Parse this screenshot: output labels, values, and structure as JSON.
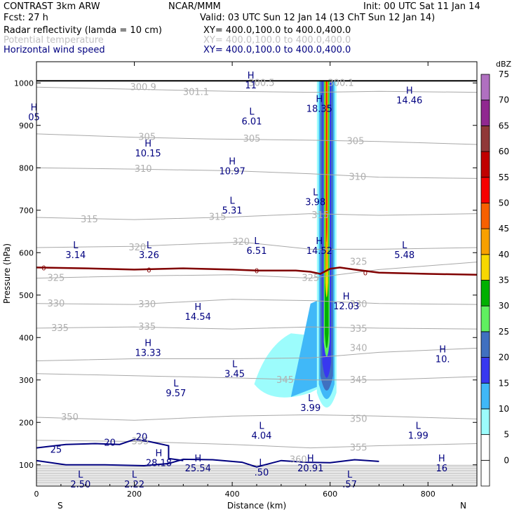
{
  "header": {
    "model": "CONTRAST  3km ARW",
    "center": "NCAR/MMM",
    "init": "Init: 00 UTC Sat 11 Jan 14",
    "fcst": "Fcst:    27 h",
    "valid": "Valid: 03 UTC Sun 12 Jan 14 (13 ChT Sun 12 Jan 14)",
    "fields": [
      {
        "name": "Radar reflectivity (lamda = 10 cm)",
        "xy": "XY=  400.0,100.0 to 400.0,400.0",
        "color": "#000000"
      },
      {
        "name": "Potential temperature",
        "xy": "XY=  400.0,100.0 to 400.0,400.0",
        "color": "#c0c0c0"
      },
      {
        "name": "Horizontal wind speed",
        "xy": "XY=  400.0,100.0 to 400.0,400.0",
        "color": "#000080"
      }
    ]
  },
  "chart_data": {
    "type": "cross-section",
    "xlabel": "Distance (km)",
    "ylabel": "Pressure (hPa)",
    "xlim": [
      0,
      900
    ],
    "ylim": [
      1050,
      50
    ],
    "x_ticks": [
      0,
      200,
      400,
      600,
      800
    ],
    "y_ticks": [
      100,
      200,
      300,
      400,
      500,
      600,
      700,
      800,
      900,
      1000
    ],
    "x_end_labels": {
      "left": "S",
      "right": "N"
    },
    "colorbar": {
      "unit": "dBZ",
      "levels": [
        0,
        5,
        10,
        15,
        20,
        25,
        30,
        35,
        40,
        45,
        50,
        55,
        60,
        65,
        70,
        75
      ],
      "colors": [
        "#ffffff",
        "#9cfcfc",
        "#40b8f8",
        "#3838f0",
        "#4070c0",
        "#60f060",
        "#00b000",
        "#f8d800",
        "#f8a000",
        "#f86000",
        "#f80000",
        "#c00000",
        "#903838",
        "#902890",
        "#b070c0"
      ]
    },
    "theta_contours": [
      {
        "value": 300,
        "points": [
          [
            0,
            990
          ],
          [
            200,
            985
          ],
          [
            400,
            980
          ],
          [
            560,
            978
          ],
          [
            700,
            980
          ],
          [
            900,
            978
          ]
        ]
      },
      {
        "value": 305,
        "points": [
          [
            0,
            880
          ],
          [
            200,
            872
          ],
          [
            350,
            868
          ],
          [
            560,
            865
          ],
          [
            700,
            862
          ],
          [
            900,
            855
          ]
        ]
      },
      {
        "value": 310,
        "points": [
          [
            0,
            800
          ],
          [
            200,
            797
          ],
          [
            400,
            793
          ],
          [
            560,
            786
          ],
          [
            700,
            778
          ],
          [
            900,
            775
          ]
        ]
      },
      {
        "value": 315,
        "points": [
          [
            0,
            683
          ],
          [
            200,
            678
          ],
          [
            400,
            684
          ],
          [
            560,
            692
          ],
          [
            700,
            688
          ],
          [
            900,
            692
          ]
        ]
      },
      {
        "value": 320,
        "points": [
          [
            0,
            612
          ],
          [
            200,
            615
          ],
          [
            420,
            625
          ],
          [
            560,
            608
          ],
          [
            700,
            608
          ],
          [
            900,
            612
          ]
        ]
      },
      {
        "value": 325,
        "points": [
          [
            0,
            540
          ],
          [
            200,
            545
          ],
          [
            400,
            548
          ],
          [
            560,
            540
          ],
          [
            700,
            560
          ],
          [
            900,
            578
          ]
        ]
      },
      {
        "value": 330,
        "points": [
          [
            0,
            480
          ],
          [
            200,
            478
          ],
          [
            400,
            490
          ],
          [
            560,
            487
          ],
          [
            700,
            480
          ],
          [
            900,
            478
          ]
        ]
      },
      {
        "value": 335,
        "points": [
          [
            0,
            422
          ],
          [
            200,
            425
          ],
          [
            400,
            420
          ],
          [
            560,
            425
          ],
          [
            700,
            422
          ],
          [
            900,
            420
          ]
        ]
      },
      {
        "value": 340,
        "points": [
          [
            0,
            345
          ],
          [
            200,
            350
          ],
          [
            400,
            350
          ],
          [
            560,
            352
          ],
          [
            700,
            365
          ],
          [
            900,
            375
          ]
        ]
      },
      {
        "value": 345,
        "points": [
          [
            0,
            315
          ],
          [
            200,
            310
          ],
          [
            400,
            305
          ],
          [
            560,
            300
          ],
          [
            700,
            300
          ],
          [
            900,
            308
          ]
        ]
      },
      {
        "value": 350,
        "points": [
          [
            0,
            212
          ],
          [
            200,
            205
          ],
          [
            400,
            215
          ],
          [
            560,
            218
          ],
          [
            700,
            215
          ],
          [
            900,
            208
          ]
        ]
      },
      {
        "value": 355,
        "points": [
          [
            0,
            158
          ],
          [
            200,
            155
          ],
          [
            400,
            148
          ],
          [
            560,
            140
          ],
          [
            700,
            145
          ],
          [
            900,
            150
          ]
        ]
      }
    ],
    "theta_labels": [
      {
        "x": 218,
        "p": 990,
        "text": "300.9"
      },
      {
        "x": 326,
        "p": 978,
        "text": "301.1"
      },
      {
        "x": 460,
        "p": 1000,
        "text": "300.5"
      },
      {
        "x": 622,
        "p": 1000,
        "text": "300.1"
      },
      {
        "x": 226,
        "p": 872,
        "text": "305"
      },
      {
        "x": 440,
        "p": 868,
        "text": "305"
      },
      {
        "x": 652,
        "p": 862,
        "text": "305"
      },
      {
        "x": 218,
        "p": 797,
        "text": "310"
      },
      {
        "x": 656,
        "p": 778,
        "text": "310"
      },
      {
        "x": 108,
        "p": 678,
        "text": "315"
      },
      {
        "x": 370,
        "p": 684,
        "text": "315"
      },
      {
        "x": 580,
        "p": 688,
        "text": "315"
      },
      {
        "x": 206,
        "p": 612,
        "text": "320"
      },
      {
        "x": 418,
        "p": 625,
        "text": "320"
      },
      {
        "x": 40,
        "p": 540,
        "text": "325"
      },
      {
        "x": 560,
        "p": 540,
        "text": "325"
      },
      {
        "x": 658,
        "p": 578,
        "text": "325"
      },
      {
        "x": 40,
        "p": 480,
        "text": "330"
      },
      {
        "x": 226,
        "p": 478,
        "text": "330"
      },
      {
        "x": 658,
        "p": 478,
        "text": "330"
      },
      {
        "x": 48,
        "p": 422,
        "text": "335"
      },
      {
        "x": 226,
        "p": 425,
        "text": "335"
      },
      {
        "x": 658,
        "p": 420,
        "text": "335"
      },
      {
        "x": 658,
        "p": 375,
        "text": "340"
      },
      {
        "x": 508,
        "p": 300,
        "text": "345"
      },
      {
        "x": 658,
        "p": 300,
        "text": "345"
      },
      {
        "x": 68,
        "p": 212,
        "text": "350"
      },
      {
        "x": 658,
        "p": 208,
        "text": "350"
      },
      {
        "x": 212,
        "p": 155,
        "text": "355"
      },
      {
        "x": 658,
        "p": 140,
        "text": "355"
      },
      {
        "x": 535,
        "p": 112,
        "text": "360"
      }
    ],
    "wind_contours": [
      {
        "value": 25,
        "points": [
          [
            0,
            110
          ],
          [
            60,
            100
          ],
          [
            140,
            100
          ],
          [
            220,
            98
          ],
          [
            270,
            103
          ],
          [
            300,
            113
          ],
          [
            360,
            112
          ],
          [
            420,
            106
          ],
          [
            450,
            95
          ],
          [
            500,
            110
          ],
          [
            550,
            106
          ],
          [
            600,
            105
          ],
          [
            650,
            112
          ],
          [
            700,
            108
          ]
        ]
      },
      {
        "value": 20,
        "points": [
          [
            0,
            140
          ],
          [
            60,
            148
          ],
          [
            120,
            150
          ],
          [
            170,
            148
          ],
          [
            200,
            160
          ],
          [
            230,
            155
          ],
          [
            270,
            145
          ],
          [
            270,
            115
          ],
          [
            300,
            110
          ]
        ]
      }
    ],
    "wind_labels": [
      {
        "x": 40,
        "p": 135,
        "text": "25"
      },
      {
        "x": 150,
        "p": 152,
        "text": "20"
      },
      {
        "x": 215,
        "p": 165,
        "text": "20"
      }
    ],
    "zero_isotherm": [
      [
        0,
        565
      ],
      [
        100,
        563
      ],
      [
        200,
        560
      ],
      [
        300,
        563
      ],
      [
        400,
        560
      ],
      [
        450,
        558
      ],
      [
        530,
        558
      ],
      [
        560,
        555
      ],
      [
        580,
        550
      ],
      [
        600,
        562
      ],
      [
        620,
        565
      ],
      [
        650,
        560
      ],
      [
        700,
        553
      ],
      [
        800,
        550
      ],
      [
        900,
        548
      ]
    ],
    "zero_isotherm_labels": [
      {
        "x": 15,
        "p": 565
      },
      {
        "x": 230,
        "p": 560
      },
      {
        "x": 450,
        "p": 558
      },
      {
        "x": 672,
        "p": 553
      }
    ],
    "reflectivity_core": {
      "x": [
        568,
        618
      ],
      "p_top": 200,
      "p_bottom": 1005
    },
    "extrema": [
      {
        "type": "L",
        "x": 90,
        "p": 70,
        "value": "2.50"
      },
      {
        "type": "L",
        "x": 200,
        "p": 70,
        "value": "2.22"
      },
      {
        "type": "H",
        "x": 330,
        "p": 108,
        "value": "25.54"
      },
      {
        "type": "L",
        "x": 460,
        "p": 98,
        "value": ".50"
      },
      {
        "type": "H",
        "x": 560,
        "p": 108,
        "value": "20.91"
      },
      {
        "type": "L",
        "x": 640,
        "p": 70,
        "value": ".57"
      },
      {
        "type": "H",
        "x": 828,
        "p": 108,
        "value": "16"
      },
      {
        "type": "H",
        "x": 250,
        "p": 120,
        "value": "28.18"
      },
      {
        "type": "L",
        "x": 460,
        "p": 185,
        "value": "4.04"
      },
      {
        "type": "L",
        "x": 780,
        "p": 185,
        "value": "1.99"
      },
      {
        "type": "L",
        "x": 285,
        "p": 285,
        "value": "9.57"
      },
      {
        "type": "L",
        "x": 560,
        "p": 250,
        "value": "3.99"
      },
      {
        "type": "L",
        "x": 405,
        "p": 330,
        "value": "3.45"
      },
      {
        "type": "H",
        "x": 228,
        "p": 380,
        "value": "13.33"
      },
      {
        "type": "H",
        "x": 830,
        "p": 365,
        "value": "10."
      },
      {
        "type": "H",
        "x": 330,
        "p": 465,
        "value": "14.54"
      },
      {
        "type": "H",
        "x": 633,
        "p": 490,
        "value": "12.03"
      },
      {
        "type": "L",
        "x": 80,
        "p": 610,
        "value": "3.14"
      },
      {
        "type": "L",
        "x": 230,
        "p": 610,
        "value": "3.26"
      },
      {
        "type": "L",
        "x": 450,
        "p": 620,
        "value": "6.51"
      },
      {
        "type": "H",
        "x": 578,
        "p": 620,
        "value": "14.52"
      },
      {
        "type": "L",
        "x": 752,
        "p": 610,
        "value": "5.48"
      },
      {
        "type": "L",
        "x": 400,
        "p": 715,
        "value": "5.31"
      },
      {
        "type": "L",
        "x": 570,
        "p": 735,
        "value": "3.98"
      },
      {
        "type": "H",
        "x": 400,
        "p": 808,
        "value": "10.97"
      },
      {
        "type": "H",
        "x": 228,
        "p": 850,
        "value": "10.15"
      },
      {
        "type": "L",
        "x": 440,
        "p": 925,
        "value": "6.01"
      },
      {
        "type": "H",
        "x": 578,
        "p": 955,
        "value": "18.35"
      },
      {
        "type": "H",
        "x": 762,
        "p": 975,
        "value": "14.46"
      },
      {
        "type": "H",
        "x": 438,
        "p": 1010,
        "value": "11"
      },
      {
        "type": "H",
        "x": -5,
        "p": 935,
        "value": "05"
      }
    ]
  }
}
